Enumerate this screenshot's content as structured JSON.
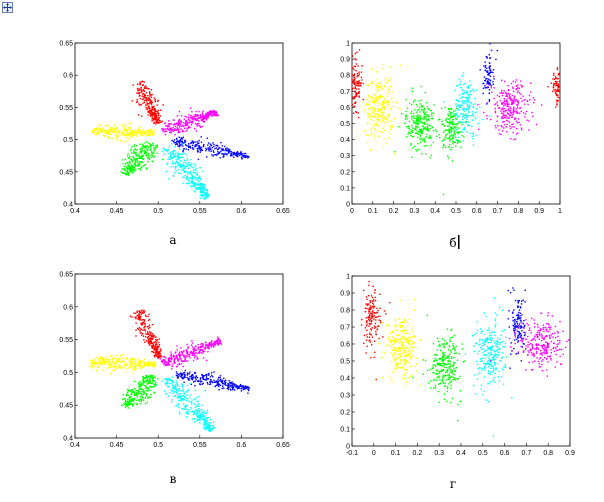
{
  "handle_icon": "move-icon",
  "colors": {
    "red": "#ff0000",
    "yellow": "#ffff00",
    "magenta": "#ff00ff",
    "blue": "#0000ff",
    "cyan": "#00ffff",
    "green": "#00ff00"
  },
  "chart_data": [
    {
      "id": "a",
      "type": "scatter",
      "caption": "а",
      "xlim": [
        0.4,
        0.65
      ],
      "ylim": [
        0.4,
        0.65
      ],
      "xticks": [
        "0.4",
        "0.45",
        "0.5",
        "0.55",
        "0.6",
        "0.65"
      ],
      "yticks": [
        "0.4",
        "0.45",
        "0.5",
        "0.55",
        "0.6",
        "0.65"
      ],
      "series": [
        {
          "name": "red",
          "color": "#ff0000",
          "from": [
            0.478,
            0.59
          ],
          "to": [
            0.5,
            0.525
          ],
          "width": 0.006,
          "n": 240
        },
        {
          "name": "yellow",
          "color": "#ffff00",
          "from": [
            0.42,
            0.514
          ],
          "to": [
            0.495,
            0.51
          ],
          "width": 0.006,
          "n": 280
        },
        {
          "name": "magenta",
          "color": "#ff00ff",
          "from": [
            0.505,
            0.513
          ],
          "to": [
            0.57,
            0.543
          ],
          "width": 0.007,
          "n": 300
        },
        {
          "name": "blue",
          "color": "#0000ff",
          "from": [
            0.515,
            0.498
          ],
          "to": [
            0.61,
            0.473
          ],
          "width": 0.005,
          "n": 260
        },
        {
          "name": "cyan",
          "color": "#00ffff",
          "from": [
            0.51,
            0.49
          ],
          "to": [
            0.56,
            0.41
          ],
          "width": 0.008,
          "n": 320
        },
        {
          "name": "green",
          "color": "#00ff00",
          "from": [
            0.495,
            0.495
          ],
          "to": [
            0.46,
            0.446
          ],
          "width": 0.008,
          "n": 260
        }
      ]
    },
    {
      "id": "b",
      "type": "scatter",
      "caption": "б",
      "xlim": [
        0,
        1
      ],
      "ylim": [
        0,
        1
      ],
      "xticks": [
        "0",
        "0.1",
        "0.2",
        "0.3",
        "0.4",
        "0.5",
        "0.6",
        "0.7",
        "0.8",
        "0.9",
        "1"
      ],
      "yticks": [
        "0",
        "0.1",
        "0.2",
        "0.3",
        "0.4",
        "0.5",
        "0.6",
        "0.7",
        "0.8",
        "0.9",
        "1"
      ],
      "series": [
        {
          "name": "red",
          "color": "#ff0000",
          "clusters": [
            {
              "cx": 0.02,
              "cy": 0.75,
              "sx": 0.015,
              "sy": 0.08,
              "n": 110
            },
            {
              "cx": 0.985,
              "cy": 0.72,
              "sx": 0.012,
              "sy": 0.05,
              "n": 70
            }
          ]
        },
        {
          "name": "yellow",
          "color": "#ffff00",
          "clusters": [
            {
              "cx": 0.13,
              "cy": 0.6,
              "sx": 0.035,
              "sy": 0.1,
              "n": 260
            }
          ]
        },
        {
          "name": "green",
          "color": "#00ff00",
          "clusters": [
            {
              "cx": 0.33,
              "cy": 0.5,
              "sx": 0.035,
              "sy": 0.08,
              "n": 240
            },
            {
              "cx": 0.48,
              "cy": 0.47,
              "sx": 0.025,
              "sy": 0.07,
              "n": 160
            }
          ]
        },
        {
          "name": "cyan",
          "color": "#00ffff",
          "clusters": [
            {
              "cx": 0.55,
              "cy": 0.6,
              "sx": 0.03,
              "sy": 0.09,
              "n": 170
            }
          ]
        },
        {
          "name": "blue",
          "color": "#0000ff",
          "clusters": [
            {
              "cx": 0.655,
              "cy": 0.8,
              "sx": 0.012,
              "sy": 0.07,
              "n": 80
            }
          ]
        },
        {
          "name": "magenta",
          "color": "#ff00ff",
          "clusters": [
            {
              "cx": 0.76,
              "cy": 0.6,
              "sx": 0.05,
              "sy": 0.08,
              "n": 260
            }
          ]
        }
      ]
    },
    {
      "id": "v",
      "type": "scatter",
      "caption": "в",
      "xlim": [
        0.4,
        0.65
      ],
      "ylim": [
        0.4,
        0.65
      ],
      "xticks": [
        "0.4",
        "0.45",
        "0.5",
        "0.55",
        "0.6",
        "0.65"
      ],
      "yticks": [
        "0.4",
        "0.45",
        "0.5",
        "0.55",
        "0.6",
        "0.65"
      ],
      "series": [
        {
          "name": "red",
          "color": "#ff0000",
          "from": [
            0.475,
            0.595
          ],
          "to": [
            0.502,
            0.522
          ],
          "width": 0.006,
          "n": 240
        },
        {
          "name": "yellow",
          "color": "#ffff00",
          "from": [
            0.418,
            0.515
          ],
          "to": [
            0.497,
            0.512
          ],
          "width": 0.006,
          "n": 280
        },
        {
          "name": "magenta",
          "color": "#ff00ff",
          "from": [
            0.505,
            0.513
          ],
          "to": [
            0.575,
            0.548
          ],
          "width": 0.007,
          "n": 300
        },
        {
          "name": "blue",
          "color": "#0000ff",
          "from": [
            0.52,
            0.498
          ],
          "to": [
            0.61,
            0.475
          ],
          "width": 0.005,
          "n": 260
        },
        {
          "name": "cyan",
          "color": "#00ffff",
          "from": [
            0.51,
            0.492
          ],
          "to": [
            0.565,
            0.412
          ],
          "width": 0.008,
          "n": 320
        },
        {
          "name": "green",
          "color": "#00ff00",
          "from": [
            0.495,
            0.495
          ],
          "to": [
            0.46,
            0.447
          ],
          "width": 0.008,
          "n": 260
        }
      ]
    },
    {
      "id": "g",
      "type": "scatter",
      "caption": "г",
      "xlim": [
        -0.1,
        0.9
      ],
      "ylim": [
        0,
        1
      ],
      "xticks": [
        "-0.1",
        "0",
        "0.1",
        "0.2",
        "0.3",
        "0.4",
        "0.5",
        "0.6",
        "0.7",
        "0.8",
        "0.9"
      ],
      "yticks": [
        "0",
        "0.1",
        "0.2",
        "0.3",
        "0.4",
        "0.5",
        "0.6",
        "0.7",
        "0.8",
        "0.9",
        "1"
      ],
      "series": [
        {
          "name": "red",
          "color": "#ff0000",
          "clusters": [
            {
              "cx": -0.01,
              "cy": 0.75,
              "sx": 0.02,
              "sy": 0.08,
              "n": 140
            }
          ]
        },
        {
          "name": "yellow",
          "color": "#ffff00",
          "clusters": [
            {
              "cx": 0.13,
              "cy": 0.58,
              "sx": 0.035,
              "sy": 0.09,
              "n": 260
            }
          ]
        },
        {
          "name": "green",
          "color": "#00ff00",
          "clusters": [
            {
              "cx": 0.33,
              "cy": 0.48,
              "sx": 0.035,
              "sy": 0.08,
              "n": 240
            }
          ]
        },
        {
          "name": "cyan",
          "color": "#00ffff",
          "clusters": [
            {
              "cx": 0.53,
              "cy": 0.54,
              "sx": 0.035,
              "sy": 0.1,
              "n": 240
            }
          ]
        },
        {
          "name": "blue",
          "color": "#0000ff",
          "clusters": [
            {
              "cx": 0.665,
              "cy": 0.72,
              "sx": 0.015,
              "sy": 0.09,
              "n": 120
            }
          ]
        },
        {
          "name": "magenta",
          "color": "#ff00ff",
          "clusters": [
            {
              "cx": 0.77,
              "cy": 0.6,
              "sx": 0.05,
              "sy": 0.08,
              "n": 250
            }
          ]
        }
      ]
    }
  ]
}
